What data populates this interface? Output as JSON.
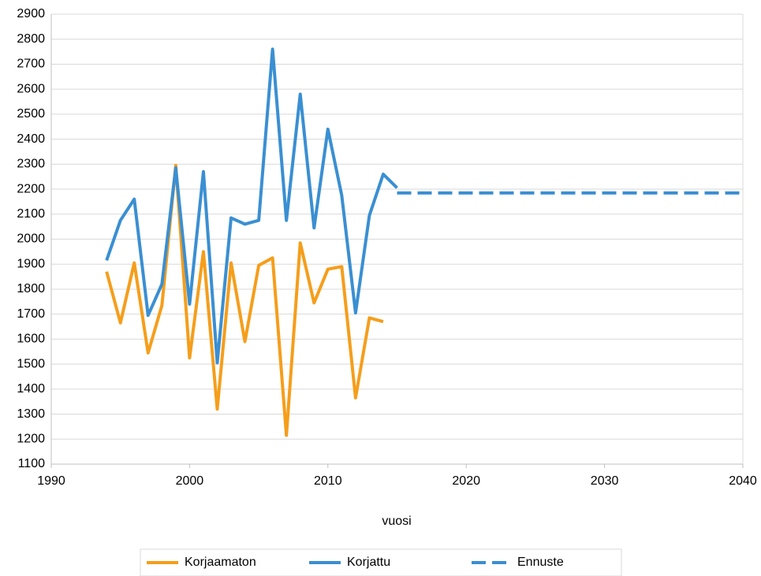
{
  "chart_data": {
    "type": "line",
    "x_label": "vuosi",
    "xlim": [
      1990,
      2040
    ],
    "xticks": [
      1990,
      2000,
      2010,
      2020,
      2030,
      2040
    ],
    "ylim": [
      1100,
      2900
    ],
    "yticks": [
      1100,
      1200,
      1300,
      1400,
      1500,
      1600,
      1700,
      1800,
      1900,
      2000,
      2100,
      2200,
      2300,
      2400,
      2500,
      2600,
      2700,
      2800,
      2900
    ],
    "grid": true,
    "legend": "bottom",
    "series": [
      {
        "name": "Korjaamaton",
        "color": "#f59e1b",
        "x": [
          1994,
          1995,
          1996,
          1997,
          1998,
          1999,
          2000,
          2001,
          2002,
          2003,
          2004,
          2005,
          2006,
          2007,
          2008,
          2009,
          2010,
          2011,
          2012,
          2013,
          2014
        ],
        "values": [
          1870,
          1665,
          1905,
          1545,
          1735,
          2295,
          1525,
          1950,
          1320,
          1905,
          1590,
          1895,
          1925,
          1215,
          1985,
          1745,
          1880,
          1890,
          1365,
          1685,
          1670
        ]
      },
      {
        "name": "Korjattu",
        "color": "#3a8fd2",
        "x": [
          1994,
          1995,
          1996,
          1997,
          1998,
          1999,
          2000,
          2001,
          2002,
          2003,
          2004,
          2005,
          2006,
          2007,
          2008,
          2009,
          2010,
          2011,
          2012,
          2013,
          2014,
          2015
        ],
        "values": [
          1915,
          2075,
          2160,
          1695,
          1820,
          2285,
          1740,
          2270,
          1505,
          2085,
          2060,
          2075,
          2760,
          2075,
          2580,
          2045,
          2440,
          2175,
          1705,
          2095,
          2260,
          2205
        ]
      },
      {
        "name": "Ennuste",
        "color": "#3a8fd2",
        "dashed": true,
        "x": [
          2015,
          2040
        ],
        "values": [
          2185,
          2185
        ]
      }
    ]
  }
}
